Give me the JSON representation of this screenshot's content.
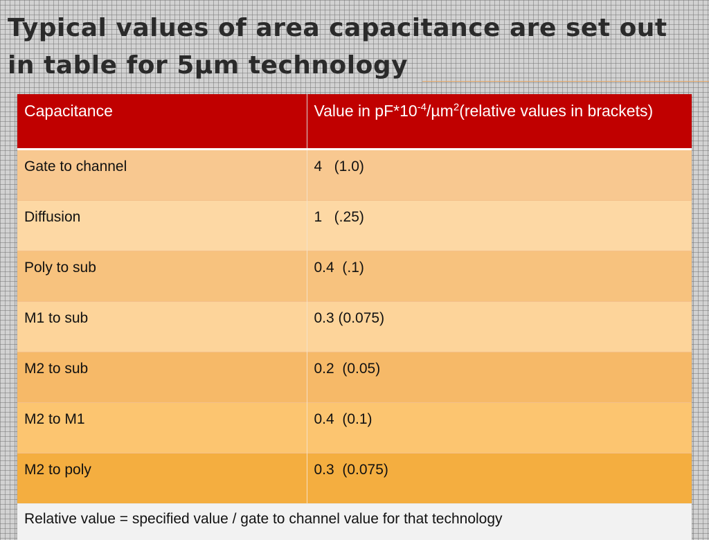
{
  "slide": {
    "title_line1": "Typical values of area capacitance are set out",
    "title_line2": "in table for 5µm technology"
  },
  "table": {
    "headers": {
      "capacitance": "Capacitance",
      "value_prefix": "Value in pF*10",
      "value_exp1": "-4",
      "value_mid": "/µm",
      "value_exp2": "2",
      "value_suffix": "(relative values in brackets)"
    },
    "rows": [
      {
        "name": "Gate to channel",
        "value": "4   (1.0)"
      },
      {
        "name": "Diffusion",
        "value": "1   (.25)"
      },
      {
        "name": "Poly to sub",
        "value": "0.4  (.1)"
      },
      {
        "name": "M1 to sub",
        "value": "0.3 (0.075)"
      },
      {
        "name": "M2 to sub",
        "value": "0.2  (0.05)"
      },
      {
        "name": "M2 to M1",
        "value": "0.4  (0.1)"
      },
      {
        "name": "M2 to poly",
        "value": "0.3  (0.075)"
      }
    ],
    "footer": "Relative value = specified value / gate to channel value for that technology"
  },
  "colors": {
    "header_bg": "#c00000",
    "background": "#d2d2d2",
    "row_accent": "#f4ae40"
  }
}
